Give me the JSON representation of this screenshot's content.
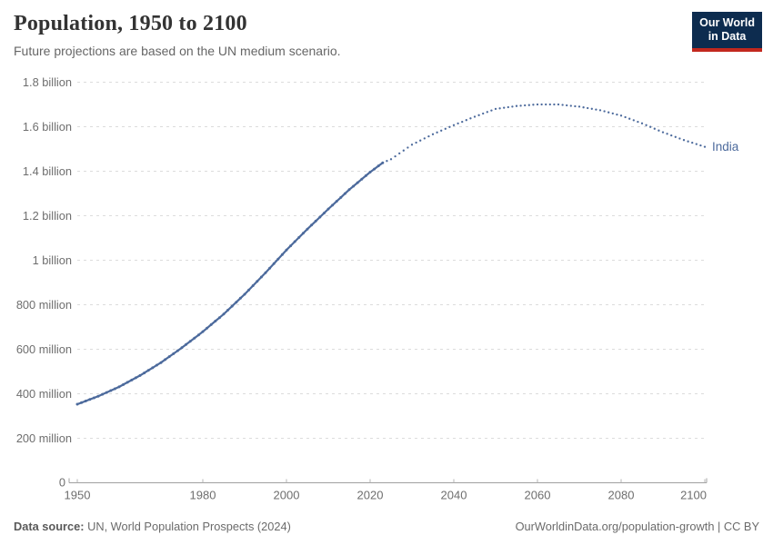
{
  "header": {
    "title": "Population, 1950 to 2100",
    "subtitle": "Future projections are based on the UN medium scenario.",
    "logo": {
      "line1": "Our World",
      "line2": "in Data",
      "bg_color": "#0D2C4F",
      "accent_color": "#C2281E"
    }
  },
  "footer": {
    "source_label": "Data source:",
    "source_text": " UN, World Population Prospects (2024)",
    "link_text": "OurWorldinData.org/population-growth | CC BY"
  },
  "chart_data": {
    "type": "line",
    "title": "Population, 1950 to 2100",
    "subtitle": "Future projections are based on the UN medium scenario.",
    "unit": "people",
    "grid": true,
    "legend_position": "end-of-line label",
    "xlim": [
      1950,
      2100
    ],
    "ylim_millions": [
      0,
      1800
    ],
    "xticks": [
      1950,
      1980,
      2000,
      2020,
      2040,
      2060,
      2080,
      2100
    ],
    "yticks": [
      {
        "value_millions": 200,
        "label": "200 million"
      },
      {
        "value_millions": 400,
        "label": "400 million"
      },
      {
        "value_millions": 600,
        "label": "600 million"
      },
      {
        "value_millions": 800,
        "label": "800 million"
      },
      {
        "value_millions": 1000,
        "label": "1 billion"
      },
      {
        "value_millions": 1200,
        "label": "1.2 billion"
      },
      {
        "value_millions": 1400,
        "label": "1.4 billion"
      },
      {
        "value_millions": 1600,
        "label": "1.6 billion"
      },
      {
        "value_millions": 1800,
        "label": "1.8 billion"
      }
    ],
    "y_zero_label": "0",
    "series": [
      {
        "name": "India",
        "end_label": "India",
        "color": "#4C6A9C",
        "projection_from": 2023,
        "projection_style": "dotted",
        "x": [
          1950,
          1955,
          1960,
          1965,
          1970,
          1975,
          1980,
          1985,
          1990,
          1995,
          2000,
          2005,
          2010,
          2015,
          2020,
          2023,
          2025,
          2030,
          2035,
          2040,
          2045,
          2050,
          2055,
          2060,
          2065,
          2070,
          2075,
          2080,
          2085,
          2090,
          2095,
          2100
        ],
        "values_millions": [
          353,
          389,
          431,
          482,
          540,
          607,
          679,
          758,
          847,
          944,
          1046,
          1140,
          1230,
          1317,
          1396,
          1438,
          1454,
          1519,
          1566,
          1607,
          1645,
          1680,
          1693,
          1700,
          1700,
          1690,
          1674,
          1650,
          1615,
          1575,
          1540,
          1510
        ]
      }
    ]
  },
  "style": {
    "grid_color": "#dcdcdc",
    "axis_color": "#a0a0a0",
    "tick_label_color": "#6e6e6e"
  }
}
